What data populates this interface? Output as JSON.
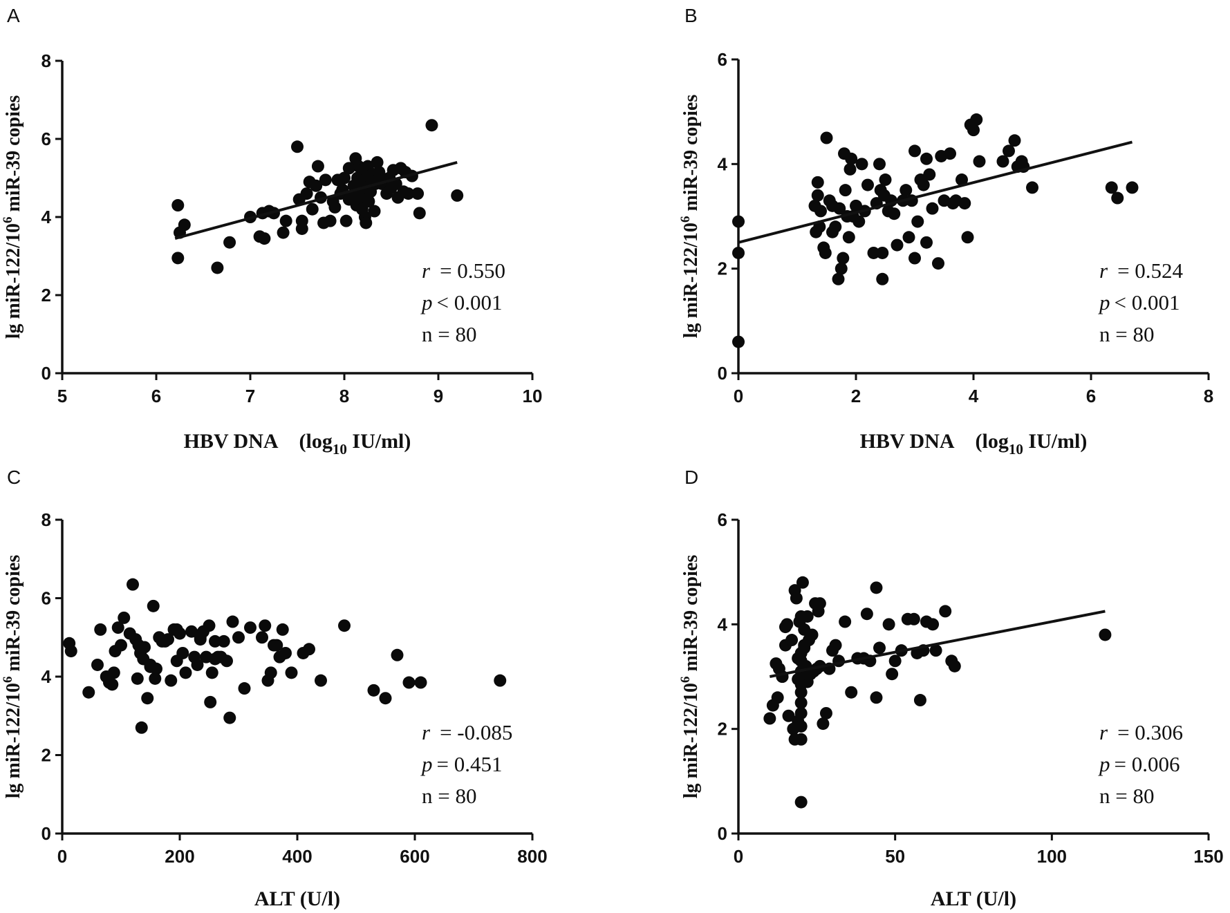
{
  "chart_data": [
    {
      "type": "scatter",
      "panel": "A",
      "xlabel_main": "HBV DNA (log",
      "xlabel_sub": "10",
      "xlabel_tail": " IU/ml)",
      "ylabel_main": "lg miR-122/10",
      "ylabel_sup": "6",
      "ylabel_tail": " miR-39 copies",
      "xlim": [
        5,
        10
      ],
      "ylim": [
        0,
        8
      ],
      "xticks": [
        5,
        6,
        7,
        8,
        9,
        10
      ],
      "yticks": [
        0,
        2,
        4,
        6,
        8
      ],
      "fit_line": [
        [
          6.2,
          3.45
        ],
        [
          9.2,
          5.4
        ]
      ],
      "stats": {
        "r_label": "r",
        "r_value": "= 0.550",
        "p_label": "p",
        "p_value": "< 0.001",
        "n_text": "n = 80"
      },
      "x": [
        6.23,
        6.25,
        6.23,
        6.3,
        6.65,
        6.78,
        7.0,
        7.1,
        7.13,
        7.15,
        7.2,
        7.25,
        7.35,
        7.38,
        7.5,
        7.52,
        7.55,
        7.55,
        7.6,
        7.63,
        7.66,
        7.7,
        7.72,
        7.75,
        7.78,
        7.8,
        7.85,
        7.88,
        7.9,
        7.93,
        7.96,
        7.98,
        8.0,
        8.02,
        8.05,
        8.08,
        8.1,
        8.12,
        8.13,
        8.14,
        8.15,
        8.16,
        8.17,
        8.18,
        8.19,
        8.2,
        8.21,
        8.22,
        8.23,
        8.24,
        8.25,
        8.26,
        8.27,
        8.28,
        8.29,
        8.3,
        8.31,
        8.32,
        8.33,
        8.35,
        8.37,
        8.38,
        8.4,
        8.42,
        8.45,
        8.48,
        8.5,
        8.52,
        8.55,
        8.57,
        8.6,
        8.63,
        8.65,
        8.68,
        8.72,
        8.78,
        8.8,
        8.93,
        9.2,
        8.05
      ],
      "y": [
        4.3,
        3.6,
        2.95,
        3.8,
        2.7,
        3.35,
        4.0,
        3.5,
        4.1,
        3.45,
        4.15,
        4.1,
        3.6,
        3.9,
        5.8,
        4.45,
        3.9,
        3.7,
        4.6,
        4.9,
        4.2,
        4.8,
        5.3,
        4.5,
        3.85,
        4.95,
        3.9,
        4.4,
        4.25,
        4.95,
        4.6,
        4.7,
        5.0,
        3.9,
        4.45,
        4.5,
        4.8,
        5.5,
        4.3,
        5.0,
        5.3,
        4.9,
        4.6,
        4.4,
        4.2,
        5.2,
        4.95,
        4.0,
        3.85,
        4.75,
        5.3,
        4.4,
        5.05,
        4.65,
        4.95,
        5.1,
        5.0,
        4.15,
        4.85,
        5.4,
        5.15,
        5.05,
        4.85,
        4.95,
        4.6,
        5.0,
        4.75,
        5.2,
        4.85,
        4.5,
        5.25,
        4.65,
        5.15,
        4.6,
        5.05,
        4.6,
        4.1,
        6.35,
        4.55,
        5.25
      ]
    },
    {
      "type": "scatter",
      "panel": "B",
      "xlabel_main": "HBV DNA (log",
      "xlabel_sub": "10",
      "xlabel_tail": " IU/ml)",
      "ylabel_main": "lg miR-122/10",
      "ylabel_sup": "6",
      "ylabel_tail": " miR-39 copies",
      "xlim": [
        0,
        8
      ],
      "ylim": [
        0,
        6
      ],
      "xticks": [
        0,
        2,
        4,
        6,
        8
      ],
      "yticks": [
        0,
        2,
        4,
        6
      ],
      "fit_line": [
        [
          0,
          2.5
        ],
        [
          6.7,
          4.42
        ]
      ],
      "stats": {
        "r_label": "r",
        "r_value": "= 0.524",
        "p_label": "p",
        "p_value": "< 0.001",
        "n_text": "n = 80"
      },
      "x": [
        0,
        0,
        0,
        1.3,
        1.32,
        1.35,
        1.38,
        1.4,
        1.45,
        1.48,
        1.5,
        1.55,
        1.6,
        1.65,
        1.7,
        1.72,
        1.75,
        1.78,
        1.8,
        1.82,
        1.85,
        1.88,
        1.9,
        1.92,
        1.95,
        2.0,
        2.05,
        2.1,
        2.15,
        2.2,
        2.3,
        2.35,
        2.4,
        2.42,
        2.45,
        2.48,
        2.5,
        2.55,
        2.6,
        2.65,
        2.7,
        2.8,
        2.85,
        2.9,
        2.95,
        3.0,
        3.0,
        3.05,
        3.1,
        3.15,
        3.2,
        3.25,
        3.3,
        3.4,
        3.45,
        3.5,
        3.6,
        3.65,
        3.7,
        3.8,
        3.9,
        3.95,
        4.0,
        4.05,
        4.1,
        4.5,
        4.6,
        4.7,
        4.75,
        4.82,
        5.0,
        6.35,
        6.45,
        6.7,
        1.6,
        2.45,
        3.85,
        4.85,
        3.2,
        1.35
      ],
      "y": [
        2.9,
        2.3,
        0.6,
        3.2,
        2.7,
        3.65,
        2.8,
        3.1,
        2.4,
        2.3,
        4.5,
        3.3,
        3.2,
        2.8,
        1.8,
        3.15,
        2.0,
        2.2,
        4.2,
        3.5,
        3.0,
        2.6,
        3.9,
        4.1,
        3.0,
        3.2,
        2.9,
        4.0,
        3.1,
        3.6,
        2.3,
        3.25,
        4.0,
        3.5,
        1.8,
        3.4,
        3.7,
        3.1,
        3.3,
        3.05,
        2.45,
        3.3,
        3.5,
        2.6,
        3.3,
        2.2,
        4.25,
        2.9,
        3.7,
        3.6,
        2.5,
        3.8,
        3.15,
        2.1,
        4.15,
        3.3,
        4.2,
        3.25,
        3.3,
        3.7,
        2.6,
        4.75,
        4.65,
        4.85,
        4.05,
        4.05,
        4.25,
        4.45,
        3.95,
        4.05,
        3.55,
        3.55,
        3.35,
        3.55,
        2.7,
        2.3,
        3.25,
        3.95,
        4.1,
        3.4
      ]
    },
    {
      "type": "scatter",
      "panel": "C",
      "xlabel_main": "ALT (U/l)",
      "ylabel_main": "lg miR-122/10",
      "ylabel_sup": "6",
      "ylabel_tail": " miR-39 copies",
      "xlim": [
        0,
        800
      ],
      "ylim": [
        0,
        8
      ],
      "xticks": [
        0,
        200,
        400,
        600,
        800
      ],
      "yticks": [
        0,
        2,
        4,
        6,
        8
      ],
      "stats": {
        "r_label": "r",
        "r_value": "= -0.085",
        "p_label": "p",
        "p_value": "= 0.451",
        "n_text": "n = 80"
      },
      "x": [
        12,
        15,
        45,
        60,
        65,
        75,
        80,
        85,
        88,
        90,
        95,
        100,
        105,
        115,
        120,
        125,
        128,
        130,
        133,
        135,
        138,
        140,
        145,
        150,
        155,
        158,
        160,
        165,
        170,
        180,
        185,
        190,
        195,
        200,
        205,
        210,
        220,
        225,
        230,
        235,
        240,
        245,
        250,
        252,
        255,
        260,
        265,
        270,
        275,
        280,
        285,
        290,
        300,
        310,
        320,
        340,
        345,
        350,
        355,
        360,
        365,
        370,
        375,
        380,
        390,
        410,
        420,
        440,
        480,
        530,
        550,
        570,
        590,
        610,
        745,
        235,
        195,
        175,
        260,
        150
      ],
      "y": [
        4.85,
        4.65,
        3.6,
        4.3,
        5.2,
        4.0,
        3.85,
        3.8,
        4.1,
        4.65,
        5.25,
        4.8,
        5.5,
        5.1,
        6.35,
        4.95,
        3.95,
        4.8,
        4.6,
        2.7,
        4.45,
        4.75,
        3.45,
        4.3,
        5.8,
        3.95,
        4.2,
        5.0,
        4.9,
        4.95,
        3.9,
        5.2,
        4.4,
        5.1,
        4.6,
        4.1,
        5.15,
        4.5,
        4.3,
        5.0,
        5.15,
        4.5,
        5.3,
        3.35,
        4.1,
        4.9,
        4.5,
        4.5,
        4.9,
        4.4,
        2.95,
        5.4,
        5.0,
        3.7,
        5.25,
        5.0,
        5.3,
        3.9,
        4.1,
        4.8,
        4.8,
        4.5,
        5.2,
        4.6,
        4.1,
        4.6,
        4.7,
        3.9,
        5.3,
        3.65,
        3.45,
        4.55,
        3.85,
        3.85,
        3.9,
        4.95,
        5.2,
        4.9,
        4.45,
        4.25
      ]
    },
    {
      "type": "scatter",
      "panel": "D",
      "xlabel_main": "ALT (U/l)",
      "ylabel_main": "lg miR-122/10",
      "ylabel_sup": "6",
      "ylabel_tail": " miR-39 copies",
      "xlim": [
        0,
        150
      ],
      "ylim": [
        0,
        6
      ],
      "xticks": [
        0,
        50,
        100,
        150
      ],
      "yticks": [
        0,
        2,
        4,
        6
      ],
      "fit_line": [
        [
          10,
          3.0
        ],
        [
          117,
          4.25
        ]
      ],
      "stats": {
        "r_label": "r",
        "r_value": "= 0.306",
        "p_label": "p",
        "p_value": "= 0.006",
        "n_text": "n = 80"
      },
      "x": [
        10,
        11,
        12,
        12.5,
        13,
        14,
        15,
        15.5,
        16,
        17,
        17.5,
        18,
        18,
        18.5,
        19,
        19,
        19.5,
        20,
        20,
        20,
        20,
        20,
        20,
        20,
        20,
        20,
        20,
        20.5,
        21,
        21,
        21.5,
        22,
        22,
        22.5,
        23,
        23.5,
        24,
        24.5,
        25,
        25.5,
        26,
        27,
        28,
        29,
        30,
        31,
        32,
        34,
        36,
        38,
        40,
        41,
        42,
        44,
        44,
        45,
        48,
        49,
        50,
        52,
        54,
        56,
        57,
        58,
        59,
        60,
        62,
        63,
        66,
        68,
        69,
        117,
        15,
        20,
        22,
        26,
        14,
        19,
        21,
        20
      ],
      "y": [
        2.2,
        2.45,
        3.25,
        2.6,
        3.15,
        3.0,
        3.6,
        4.0,
        2.25,
        3.7,
        2.0,
        4.65,
        1.8,
        4.5,
        2.15,
        3.35,
        4.05,
        0.6,
        1.8,
        2.3,
        2.5,
        2.7,
        2.85,
        3.0,
        3.1,
        3.3,
        3.45,
        4.8,
        3.55,
        3.9,
        3.2,
        4.15,
        2.9,
        3.7,
        3.05,
        3.8,
        3.1,
        4.4,
        3.15,
        4.25,
        3.2,
        2.1,
        2.3,
        3.15,
        3.5,
        3.6,
        3.3,
        4.05,
        2.7,
        3.35,
        3.35,
        4.2,
        3.3,
        4.7,
        2.6,
        3.55,
        4.0,
        3.05,
        3.3,
        3.5,
        4.1,
        4.1,
        3.45,
        2.55,
        3.5,
        4.05,
        4.0,
        3.5,
        4.25,
        3.3,
        3.2,
        3.8,
        3.95,
        4.15,
        3.05,
        4.4,
        3.0,
        2.95,
        3.6,
        2.05
      ]
    }
  ]
}
